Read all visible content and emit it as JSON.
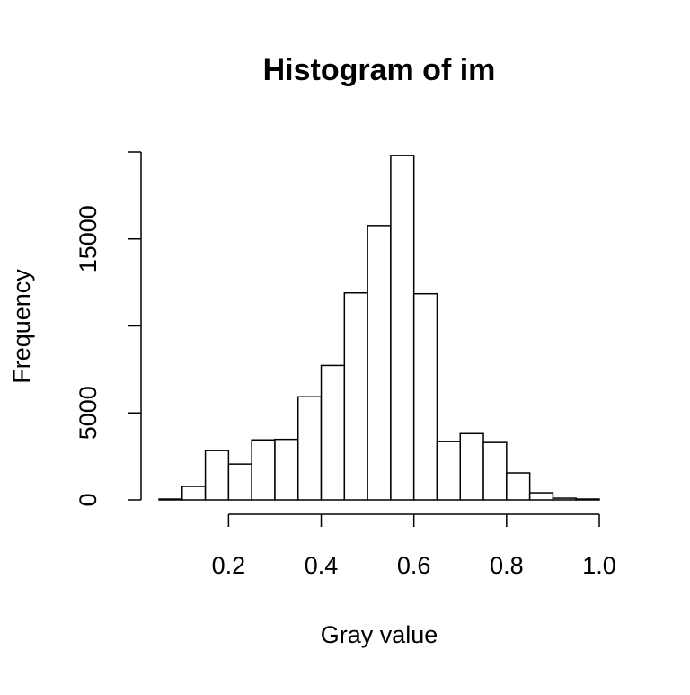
{
  "chart_data": {
    "type": "histogram",
    "title": "Histogram of im",
    "x_label": "Gray value",
    "y_label": "Frequency",
    "bins": [
      0.05,
      0.1,
      0.15,
      0.2,
      0.25,
      0.3,
      0.35,
      0.4,
      0.45,
      0.5,
      0.55,
      0.6,
      0.65,
      0.7,
      0.75,
      0.8,
      0.85,
      0.9,
      0.95,
      1.0
    ],
    "counts": [
      50,
      775,
      2835,
      2060,
      3450,
      3480,
      5930,
      7730,
      11900,
      15770,
      19800,
      11850,
      3350,
      3810,
      3300,
      1550,
      410,
      100,
      50
    ],
    "color": "#ffffff",
    "xlim": [
      0.05,
      1.0
    ],
    "ylim": [
      0,
      20000
    ],
    "xticks": [
      0.2,
      0.4,
      0.6,
      0.8,
      {
        "value": 1,
        "label": "1.0"
      }
    ],
    "yticks": [
      0,
      5000,
      15000
    ],
    "yticks_unlabeled": [
      10000,
      20000
    ]
  }
}
